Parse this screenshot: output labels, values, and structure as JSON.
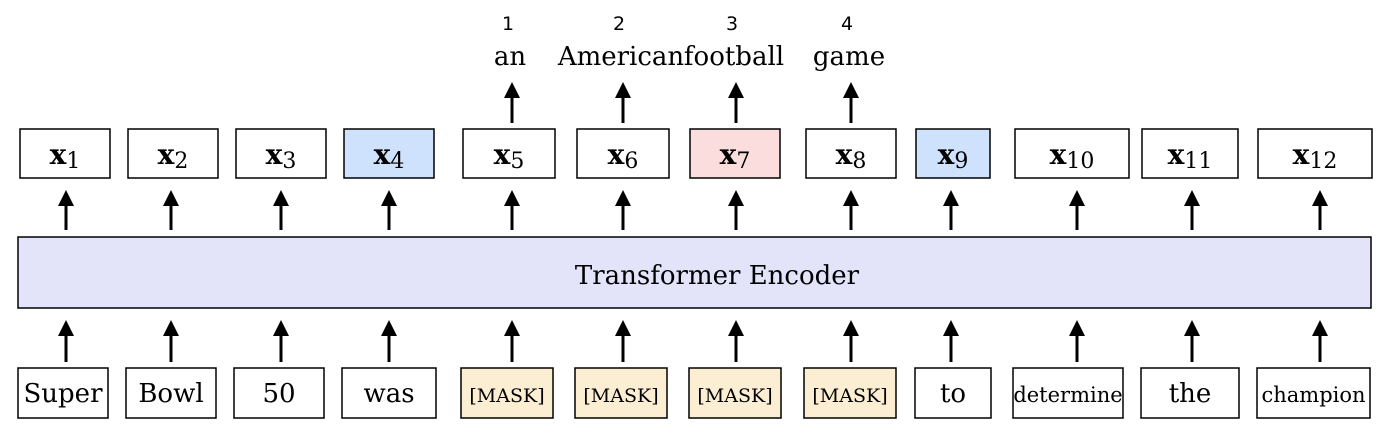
{
  "colors": {
    "encoder_fill": "#e3e4fa",
    "mask_fill": "#fbeed2",
    "highlight_blue": "#cfe2fd",
    "highlight_pink": "#fadddc",
    "default_fill": "#ffffff"
  },
  "encoder": {
    "label": "Transformer Encoder"
  },
  "inputs": [
    {
      "text": "Super",
      "type": "word"
    },
    {
      "text": "Bowl",
      "type": "word"
    },
    {
      "text": "50",
      "type": "word"
    },
    {
      "text": "was",
      "type": "word"
    },
    {
      "text": "[MASK]",
      "type": "mask"
    },
    {
      "text": "[MASK]",
      "type": "mask"
    },
    {
      "text": "[MASK]",
      "type": "mask"
    },
    {
      "text": "[MASK]",
      "type": "mask"
    },
    {
      "text": "to",
      "type": "word"
    },
    {
      "text": "determine",
      "type": "small"
    },
    {
      "text": "the",
      "type": "word"
    },
    {
      "text": "champion",
      "type": "small"
    }
  ],
  "outputs": [
    {
      "symbol": "x",
      "sub": "1",
      "highlight": "none"
    },
    {
      "symbol": "x",
      "sub": "2",
      "highlight": "none"
    },
    {
      "symbol": "x",
      "sub": "3",
      "highlight": "none"
    },
    {
      "symbol": "x",
      "sub": "4",
      "highlight": "blue"
    },
    {
      "symbol": "x",
      "sub": "5",
      "highlight": "none"
    },
    {
      "symbol": "x",
      "sub": "6",
      "highlight": "none"
    },
    {
      "symbol": "x",
      "sub": "7",
      "highlight": "pink"
    },
    {
      "symbol": "x",
      "sub": "8",
      "highlight": "none"
    },
    {
      "symbol": "x",
      "sub": "9",
      "highlight": "blue"
    },
    {
      "symbol": "x",
      "sub": "10",
      "highlight": "none"
    },
    {
      "symbol": "x",
      "sub": "11",
      "highlight": "none"
    },
    {
      "symbol": "x",
      "sub": "12",
      "highlight": "none"
    }
  ],
  "predictions": [
    {
      "col": 4,
      "number": "1",
      "word": "an"
    },
    {
      "col": 5,
      "number": "2",
      "word": "American"
    },
    {
      "col": 6,
      "number": "3",
      "word": "football"
    },
    {
      "col": 7,
      "number": "4",
      "word": "game"
    }
  ]
}
